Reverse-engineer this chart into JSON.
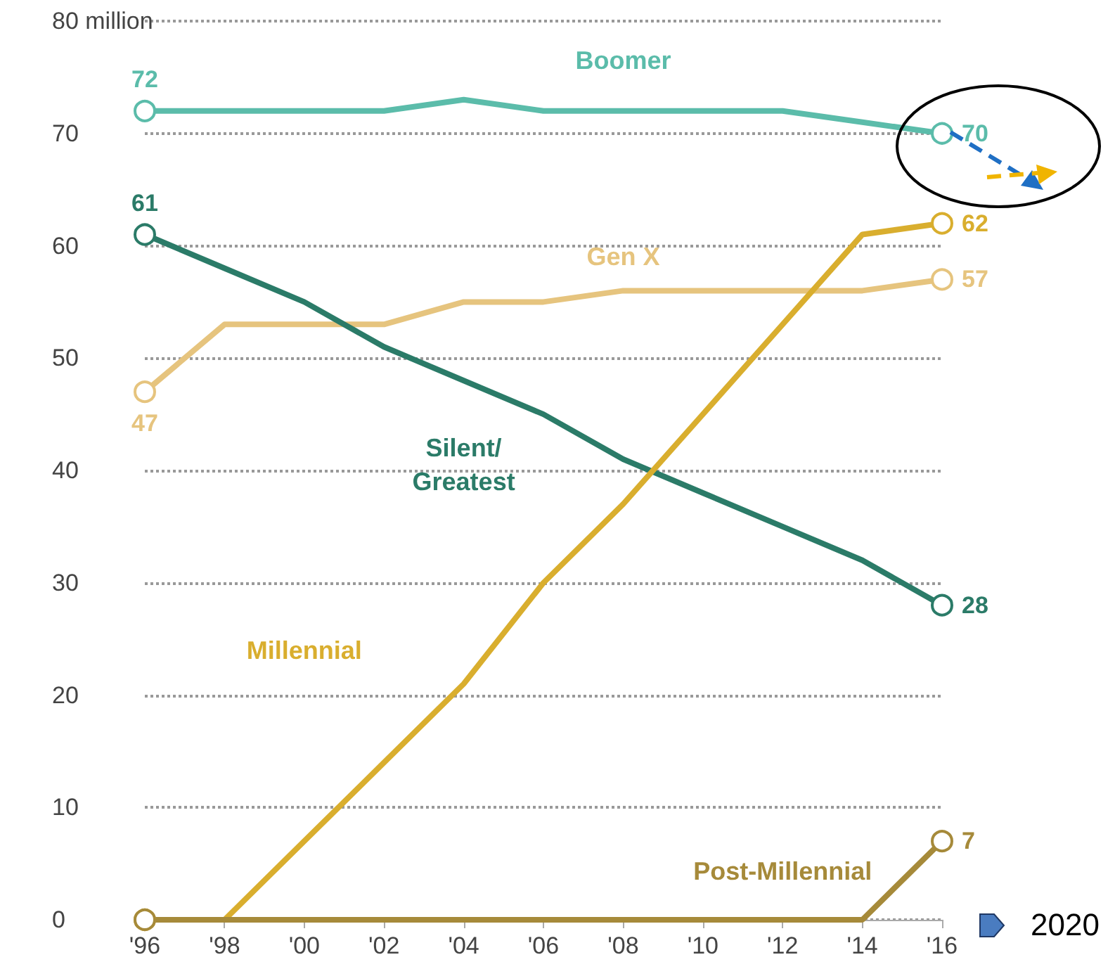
{
  "chart_data": {
    "type": "line",
    "categories": [
      "'96",
      "'98",
      "'00",
      "'02",
      "'04",
      "'06",
      "'08",
      "'10",
      "'12",
      "'14",
      "'16"
    ],
    "series": [
      {
        "name": "Boomer",
        "color": "#5bbcaa",
        "values": [
          72,
          72,
          72,
          72,
          73,
          72,
          72,
          72,
          72,
          71,
          70
        ],
        "value_labels": [
          "72",
          null,
          null,
          null,
          null,
          null,
          null,
          null,
          null,
          null,
          "70"
        ]
      },
      {
        "name": "Gen X",
        "color": "#e6c47e",
        "values": [
          47,
          53,
          53,
          53,
          55,
          55,
          56,
          56,
          56,
          56,
          57
        ],
        "value_labels": [
          "47",
          null,
          null,
          null,
          null,
          null,
          null,
          null,
          null,
          null,
          "57"
        ]
      },
      {
        "name": "Silent/\nGreatest",
        "color": "#2b7b68",
        "values": [
          61,
          58,
          55,
          51,
          48,
          45,
          41,
          38,
          35,
          32,
          28
        ],
        "value_labels": [
          "61",
          null,
          null,
          null,
          null,
          null,
          null,
          null,
          null,
          null,
          "28"
        ]
      },
      {
        "name": "Millennial",
        "color": "#d9ae2e",
        "values": [
          0,
          0,
          7,
          14,
          21,
          30,
          37,
          45,
          53,
          61,
          62
        ],
        "value_labels": [
          null,
          null,
          null,
          null,
          null,
          null,
          null,
          null,
          null,
          null,
          "62"
        ]
      },
      {
        "name": "Post-Millennial",
        "color": "#a68a3a",
        "values": [
          0,
          0,
          0,
          0,
          0,
          0,
          0,
          0,
          0,
          0,
          7
        ],
        "value_labels": [
          null,
          null,
          null,
          null,
          null,
          null,
          null,
          null,
          null,
          null,
          "7"
        ]
      }
    ],
    "ylim": [
      0,
      80
    ],
    "yticks": [
      0,
      10,
      20,
      30,
      40,
      50,
      60,
      70,
      {
        "value": 80,
        "label": "80 million"
      }
    ],
    "annotations": [
      "2020"
    ],
    "grid": "y",
    "legend": false,
    "line_style": "solid"
  }
}
